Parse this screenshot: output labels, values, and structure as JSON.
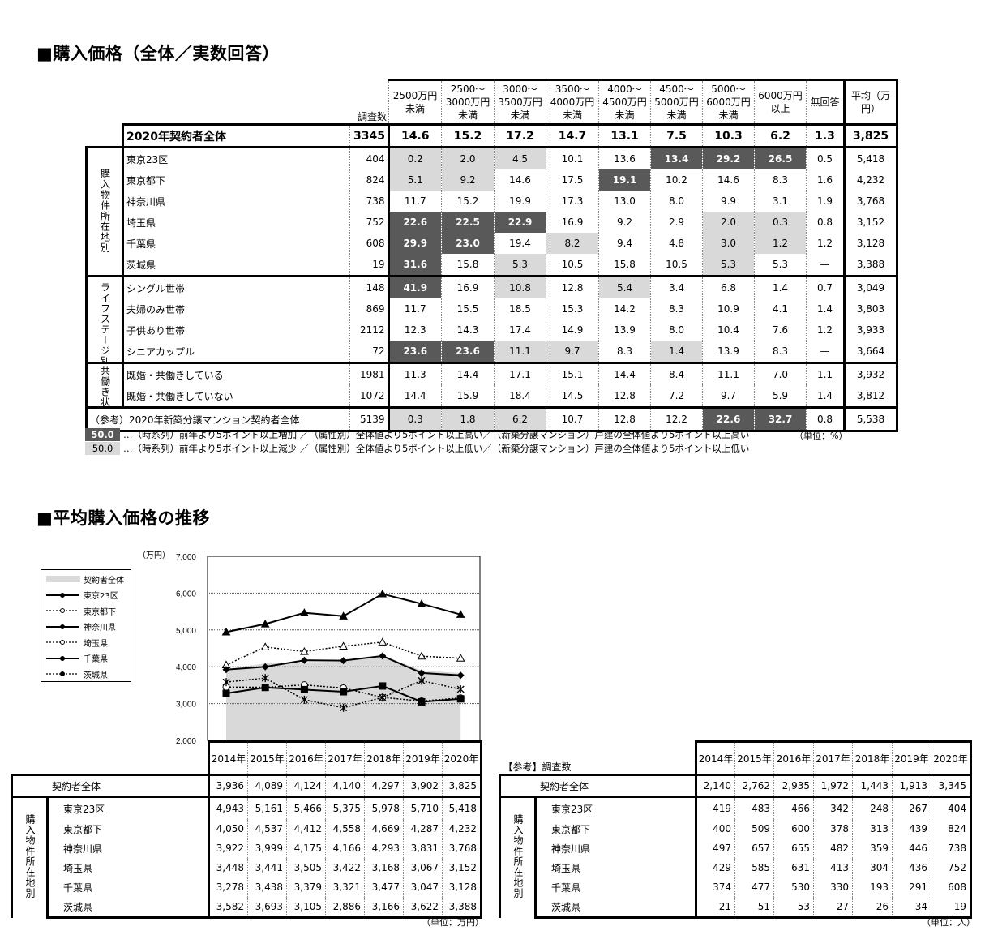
{
  "section1": {
    "title": "■購入価格（全体／実数回答）",
    "count_header": "調査数",
    "columns": [
      "2500万円未満",
      "2500～3000万円未満",
      "3000～3500万円未満",
      "3500～4000万円未満",
      "4000～4500万円未満",
      "4500～5000万円未満",
      "5000～6000万円未満",
      "6000万円以上",
      "無回答",
      "平均（万円）"
    ],
    "total": {
      "label": "2020年契約者全体",
      "n": "3345",
      "values": [
        "14.6",
        "15.2",
        "17.2",
        "14.7",
        "13.1",
        "7.5",
        "10.3",
        "6.2",
        "1.3",
        "3,825"
      ]
    },
    "groups": [
      {
        "label": "購入物件所在地別",
        "rows": [
          {
            "label": "東京23区",
            "n": "404",
            "values": [
              "0.2",
              "2.0",
              "4.5",
              "10.1",
              "13.6",
              "13.4",
              "29.2",
              "26.5",
              "0.5",
              "5,418"
            ],
            "highlights": [
              "down",
              "down",
              "down",
              null,
              null,
              "up",
              "up",
              "up",
              null,
              null
            ]
          },
          {
            "label": "東京都下",
            "n": "824",
            "values": [
              "5.1",
              "9.2",
              "14.6",
              "17.5",
              "19.1",
              "10.2",
              "14.6",
              "8.3",
              "1.6",
              "4,232"
            ],
            "highlights": [
              "down",
              "down",
              null,
              null,
              "up",
              null,
              null,
              null,
              null,
              null
            ]
          },
          {
            "label": "神奈川県",
            "n": "738",
            "values": [
              "11.7",
              "15.2",
              "19.9",
              "17.3",
              "13.0",
              "8.0",
              "9.9",
              "3.1",
              "1.9",
              "3,768"
            ],
            "highlights": [
              null,
              null,
              null,
              null,
              null,
              null,
              null,
              null,
              null,
              null
            ]
          },
          {
            "label": "埼玉県",
            "n": "752",
            "values": [
              "22.6",
              "22.5",
              "22.9",
              "16.9",
              "9.2",
              "2.9",
              "2.0",
              "0.3",
              "0.8",
              "3,152"
            ],
            "highlights": [
              "up",
              "up",
              "up",
              null,
              null,
              null,
              "down",
              "down",
              null,
              null
            ]
          },
          {
            "label": "千葉県",
            "n": "608",
            "values": [
              "29.9",
              "23.0",
              "19.4",
              "8.2",
              "9.4",
              "4.8",
              "3.0",
              "1.2",
              "1.2",
              "3,128"
            ],
            "highlights": [
              "up",
              "up",
              null,
              "down",
              null,
              null,
              "down",
              "down",
              null,
              null
            ]
          },
          {
            "label": "茨城県",
            "n": "19",
            "values": [
              "31.6",
              "15.8",
              "5.3",
              "10.5",
              "15.8",
              "10.5",
              "5.3",
              "5.3",
              "—",
              "3,388"
            ],
            "highlights": [
              "up",
              null,
              "down",
              null,
              null,
              null,
              "down",
              null,
              null,
              null
            ]
          }
        ]
      },
      {
        "label": "ライフステージ別",
        "rows": [
          {
            "label": "シングル世帯",
            "n": "148",
            "values": [
              "41.9",
              "16.9",
              "10.8",
              "12.8",
              "5.4",
              "3.4",
              "6.8",
              "1.4",
              "0.7",
              "3,049"
            ],
            "highlights": [
              "up",
              null,
              "down",
              null,
              "down",
              null,
              null,
              null,
              null,
              null
            ]
          },
          {
            "label": "夫婦のみ世帯",
            "n": "869",
            "values": [
              "11.7",
              "15.5",
              "18.5",
              "15.3",
              "14.2",
              "8.3",
              "10.9",
              "4.1",
              "1.4",
              "3,803"
            ],
            "highlights": [
              null,
              null,
              null,
              null,
              null,
              null,
              null,
              null,
              null,
              null
            ]
          },
          {
            "label": "子供あり世帯",
            "n": "2112",
            "values": [
              "12.3",
              "14.3",
              "17.4",
              "14.9",
              "13.9",
              "8.0",
              "10.4",
              "7.6",
              "1.2",
              "3,933"
            ],
            "highlights": [
              null,
              null,
              null,
              null,
              null,
              null,
              null,
              null,
              null,
              null
            ]
          },
          {
            "label": "シニアカップル",
            "n": "72",
            "values": [
              "23.6",
              "23.6",
              "11.1",
              "9.7",
              "8.3",
              "1.4",
              "13.9",
              "8.3",
              "—",
              "3,664"
            ],
            "highlights": [
              "up",
              "up",
              "down",
              "down",
              null,
              "down",
              null,
              null,
              null,
              null
            ]
          }
        ]
      },
      {
        "label": "共働き状況別",
        "rows": [
          {
            "label": "既婚・共働きしている",
            "n": "1981",
            "values": [
              "11.3",
              "14.4",
              "17.1",
              "15.1",
              "14.4",
              "8.4",
              "11.1",
              "7.0",
              "1.1",
              "3,932"
            ],
            "highlights": [
              null,
              null,
              null,
              null,
              null,
              null,
              null,
              null,
              null,
              null
            ]
          },
          {
            "label": "既婚・共働きしていない",
            "n": "1072",
            "values": [
              "14.4",
              "15.9",
              "18.4",
              "14.5",
              "12.8",
              "7.2",
              "9.7",
              "5.9",
              "1.4",
              "3,812"
            ],
            "highlights": [
              null,
              null,
              null,
              null,
              null,
              null,
              null,
              null,
              null,
              null
            ]
          }
        ]
      }
    ],
    "reference": {
      "label": "（参考）2020年新築分譲マンション契約者全体",
      "n": "5139",
      "values": [
        "0.3",
        "1.8",
        "6.2",
        "10.7",
        "12.8",
        "12.2",
        "22.6",
        "32.7",
        "0.8",
        "5,538"
      ],
      "highlights": [
        "down",
        "down",
        "down",
        null,
        null,
        null,
        "up",
        "up",
        null,
        null
      ]
    },
    "legend": [
      {
        "swatch": "50.0",
        "type": "up",
        "text": "…（時系列）前年より5ポイント以上増加 ／（属性別）全体値より5ポイント以上高い／（新築分譲マンション）戸建の全体値より5ポイント以上高い"
      },
      {
        "swatch": "50.0",
        "type": "down",
        "text": "…（時系列）前年より5ポイント以上減少 ／（属性別）全体値より5ポイント以上低い／（新築分譲マンション）戸建の全体値より5ポイント以上低い"
      }
    ],
    "unit": "（単位：%）",
    "colors": {
      "up": "#595959",
      "down": "#d9d9d9"
    }
  },
  "section2": {
    "title": "■平均購入価格の推移",
    "group_label": "購入物件所在地別",
    "years": [
      "2014年",
      "2015年",
      "2016年",
      "2017年",
      "2018年",
      "2019年",
      "2020年"
    ],
    "price_table": {
      "all": {
        "label": "契約者全体",
        "values": [
          "3,936",
          "4,089",
          "4,124",
          "4,140",
          "4,297",
          "3,902",
          "3,825"
        ]
      },
      "rows": [
        {
          "label": "東京23区",
          "values": [
            "4,943",
            "5,161",
            "5,466",
            "5,375",
            "5,978",
            "5,710",
            "5,418"
          ]
        },
        {
          "label": "東京都下",
          "values": [
            "4,050",
            "4,537",
            "4,412",
            "4,558",
            "4,669",
            "4,287",
            "4,232"
          ]
        },
        {
          "label": "神奈川県",
          "values": [
            "3,922",
            "3,999",
            "4,175",
            "4,166",
            "4,293",
            "3,831",
            "3,768"
          ]
        },
        {
          "label": "埼玉県",
          "values": [
            "3,448",
            "3,441",
            "3,505",
            "3,422",
            "3,168",
            "3,067",
            "3,152"
          ]
        },
        {
          "label": "千葉県",
          "values": [
            "3,278",
            "3,438",
            "3,379",
            "3,321",
            "3,477",
            "3,047",
            "3,128"
          ]
        },
        {
          "label": "茨城県",
          "values": [
            "3,582",
            "3,693",
            "3,105",
            "2,886",
            "3,166",
            "3,622",
            "3,388"
          ]
        }
      ],
      "unit": "（単位：万円）"
    },
    "count_table": {
      "caption": "【参考】調査数",
      "all": {
        "label": "契約者全体",
        "values": [
          "2,140",
          "2,762",
          "2,935",
          "1,972",
          "1,443",
          "1,913",
          "3,345"
        ]
      },
      "rows": [
        {
          "label": "東京23区",
          "values": [
            "419",
            "483",
            "466",
            "342",
            "248",
            "267",
            "404"
          ]
        },
        {
          "label": "東京都下",
          "values": [
            "400",
            "509",
            "600",
            "378",
            "313",
            "439",
            "824"
          ]
        },
        {
          "label": "神奈川県",
          "values": [
            "497",
            "657",
            "655",
            "482",
            "359",
            "446",
            "738"
          ]
        },
        {
          "label": "埼玉県",
          "values": [
            "429",
            "585",
            "631",
            "413",
            "304",
            "436",
            "752"
          ]
        },
        {
          "label": "千葉県",
          "values": [
            "374",
            "477",
            "530",
            "330",
            "193",
            "291",
            "608"
          ]
        },
        {
          "label": "茨城県",
          "values": [
            "21",
            "51",
            "53",
            "27",
            "26",
            "34",
            "19"
          ]
        }
      ],
      "unit": "（単位：人）"
    }
  },
  "chart_data": {
    "type": "line",
    "ylabel": "（万円）",
    "ylim": [
      2000,
      7000
    ],
    "yticks": [
      "2,000",
      "3,000",
      "4,000",
      "5,000",
      "6,000",
      "7,000"
    ],
    "ytick_values": [
      2000,
      3000,
      4000,
      5000,
      6000,
      7000
    ],
    "x": [
      "2014年",
      "2015年",
      "2016年",
      "2017年",
      "2018年",
      "2019年",
      "2020年"
    ],
    "grid": "horizontal dotted",
    "legend_position": "left",
    "series": [
      {
        "name": "契約者全体",
        "kind": "area",
        "color": "#d9d9d9",
        "values": [
          3936,
          4089,
          4124,
          4140,
          4297,
          3902,
          3825
        ]
      },
      {
        "name": "東京23区",
        "line": "solid",
        "marker": "triangle-filled",
        "values": [
          4943,
          5161,
          5466,
          5375,
          5978,
          5710,
          5418
        ]
      },
      {
        "name": "東京都下",
        "line": "dotted",
        "marker": "triangle-open",
        "values": [
          4050,
          4537,
          4412,
          4558,
          4669,
          4287,
          4232
        ]
      },
      {
        "name": "神奈川県",
        "line": "solid",
        "marker": "diamond-filled",
        "values": [
          3922,
          3999,
          4175,
          4166,
          4293,
          3831,
          3768
        ]
      },
      {
        "name": "埼玉県",
        "line": "dotted",
        "marker": "circle-open",
        "values": [
          3448,
          3441,
          3505,
          3422,
          3168,
          3067,
          3152
        ]
      },
      {
        "name": "千葉県",
        "line": "solid",
        "marker": "square-filled",
        "values": [
          3278,
          3438,
          3379,
          3321,
          3477,
          3047,
          3128
        ]
      },
      {
        "name": "茨城県",
        "line": "dotted",
        "marker": "asterisk",
        "values": [
          3582,
          3693,
          3105,
          2886,
          3166,
          3622,
          3388
        ]
      }
    ]
  }
}
